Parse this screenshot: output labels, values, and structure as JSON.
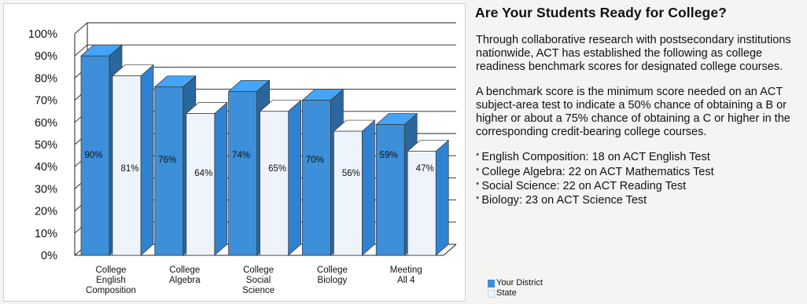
{
  "chart_data": {
    "type": "bar",
    "categories": [
      [
        "College",
        "English",
        "Composition"
      ],
      [
        "College",
        "Algebra"
      ],
      [
        "College",
        "Social",
        "Science"
      ],
      [
        "College",
        "Biology"
      ],
      [
        "Meeting",
        "All 4"
      ]
    ],
    "series": [
      {
        "name": "Your District",
        "values": [
          90,
          76,
          74,
          70,
          59
        ],
        "color": "#3c8fd8"
      },
      {
        "name": "State",
        "values": [
          81,
          64,
          65,
          56,
          47
        ],
        "color": "#eef4fb"
      }
    ],
    "ylim": [
      0,
      100
    ],
    "ytick_labels": [
      "0%",
      "10%",
      "20%",
      "30%",
      "40%",
      "50%",
      "60%",
      "70%",
      "80%",
      "90%",
      "100%"
    ],
    "value_suffix": "%",
    "legend_position": "below"
  },
  "text": {
    "title": "Are Your Students Ready for College?",
    "paragraph1": "Through collaborative research with postsecondary institutions nationwide, ACT has established the following as college readiness benchmark scores for designated college courses.",
    "paragraph2": "A benchmark score is the minimum score needed on an ACT subject-area test to indicate a 50% chance of obtaining a B or higher or about a 75% chance of obtaining a C or higher in the corresponding credit-bearing college courses.",
    "bullets": [
      "English Composition: 18 on ACT English Test",
      "College Algebra: 22 on ACT Mathematics Test",
      "Social Science: 22 on ACT Reading Test",
      "Biology: 23 on ACT Science Test"
    ]
  },
  "legend": {
    "district": "Your District",
    "state": "State"
  }
}
